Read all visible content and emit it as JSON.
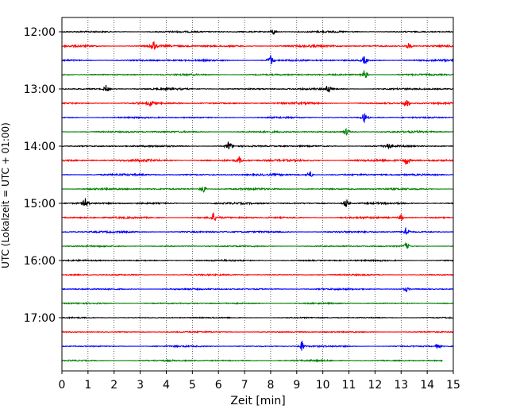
{
  "chart_data": {
    "type": "line",
    "subtype": "helicorder",
    "xlabel": "Zeit  [min]",
    "ylabel": "UTC (Lokalzeit = UTC + 01:00)",
    "xlim": [
      0,
      15
    ],
    "x_ticks": [
      "0",
      "1",
      "2",
      "3",
      "4",
      "5",
      "6",
      "7",
      "8",
      "9",
      "10",
      "11",
      "12",
      "13",
      "14",
      "15"
    ],
    "y_ticks": [
      "12:00",
      "13:00",
      "14:00",
      "15:00",
      "16:00",
      "17:00"
    ],
    "grid": "vertical dotted",
    "colors_cycle": [
      "#000000",
      "#ff0000",
      "#0000ff",
      "#008000"
    ],
    "rows": [
      {
        "start": "12:00",
        "color": "#000000",
        "amplitude": 0.55,
        "end_min": 15,
        "events": [
          {
            "t": 8.1,
            "amp": 2
          }
        ]
      },
      {
        "start": "12:15",
        "color": "#ff0000",
        "amplitude": 0.7,
        "end_min": 15,
        "events": [
          {
            "t": 3.5,
            "amp": 3.5
          },
          {
            "t": 13.3,
            "amp": 2
          }
        ]
      },
      {
        "start": "12:30",
        "color": "#0000ff",
        "amplitude": 0.6,
        "end_min": 15,
        "events": [
          {
            "t": 8.0,
            "amp": 3.5
          },
          {
            "t": 11.6,
            "amp": 2.5
          }
        ]
      },
      {
        "start": "12:45",
        "color": "#008000",
        "amplitude": 0.55,
        "end_min": 15,
        "events": [
          {
            "t": 11.6,
            "amp": 3.5
          }
        ]
      },
      {
        "start": "13:00",
        "color": "#000000",
        "amplitude": 0.6,
        "end_min": 15,
        "events": [
          {
            "t": 1.7,
            "amp": 2.5
          },
          {
            "t": 10.2,
            "amp": 3
          }
        ]
      },
      {
        "start": "13:15",
        "color": "#ff0000",
        "amplitude": 0.6,
        "end_min": 15,
        "events": [
          {
            "t": 3.4,
            "amp": 2
          },
          {
            "t": 13.2,
            "amp": 3
          }
        ]
      },
      {
        "start": "13:30",
        "color": "#0000ff",
        "amplitude": 0.5,
        "end_min": 15,
        "events": [
          {
            "t": 11.6,
            "amp": 3.5
          }
        ]
      },
      {
        "start": "13:45",
        "color": "#008000",
        "amplitude": 0.55,
        "end_min": 15,
        "events": [
          {
            "t": 10.9,
            "amp": 2.5
          }
        ]
      },
      {
        "start": "14:00",
        "color": "#000000",
        "amplitude": 0.55,
        "end_min": 15,
        "events": [
          {
            "t": 6.4,
            "amp": 3.5
          },
          {
            "t": 12.5,
            "amp": 2
          }
        ]
      },
      {
        "start": "14:15",
        "color": "#ff0000",
        "amplitude": 0.75,
        "end_min": 15,
        "events": [
          {
            "t": 6.8,
            "amp": 2
          },
          {
            "t": 13.2,
            "amp": 3
          }
        ]
      },
      {
        "start": "14:30",
        "color": "#0000ff",
        "amplitude": 0.6,
        "end_min": 15,
        "events": [
          {
            "t": 9.5,
            "amp": 3
          }
        ]
      },
      {
        "start": "14:45",
        "color": "#008000",
        "amplitude": 0.6,
        "end_min": 15,
        "events": [
          {
            "t": 5.4,
            "amp": 3
          }
        ]
      },
      {
        "start": "15:00",
        "color": "#000000",
        "amplitude": 0.6,
        "end_min": 15,
        "events": [
          {
            "t": 0.9,
            "amp": 3
          },
          {
            "t": 10.9,
            "amp": 3
          }
        ]
      },
      {
        "start": "15:15",
        "color": "#ff0000",
        "amplitude": 0.6,
        "end_min": 15,
        "events": [
          {
            "t": 5.8,
            "amp": 3
          },
          {
            "t": 13.0,
            "amp": 2
          }
        ]
      },
      {
        "start": "15:30",
        "color": "#0000ff",
        "amplitude": 0.55,
        "end_min": 15,
        "events": [
          {
            "t": 13.2,
            "amp": 3.5
          }
        ]
      },
      {
        "start": "15:45",
        "color": "#008000",
        "amplitude": 0.45,
        "end_min": 15,
        "events": [
          {
            "t": 13.2,
            "amp": 2.5
          }
        ]
      },
      {
        "start": "16:00",
        "color": "#000000",
        "amplitude": 0.5,
        "end_min": 15,
        "events": []
      },
      {
        "start": "16:15",
        "color": "#ff0000",
        "amplitude": 0.45,
        "end_min": 15,
        "events": []
      },
      {
        "start": "16:30",
        "color": "#0000ff",
        "amplitude": 0.5,
        "end_min": 15,
        "events": [
          {
            "t": 13.2,
            "amp": 1.5
          }
        ]
      },
      {
        "start": "16:45",
        "color": "#008000",
        "amplitude": 0.45,
        "end_min": 15,
        "events": []
      },
      {
        "start": "17:00",
        "color": "#000000",
        "amplitude": 0.4,
        "end_min": 15,
        "events": []
      },
      {
        "start": "17:15",
        "color": "#ff0000",
        "amplitude": 0.4,
        "end_min": 15,
        "events": []
      },
      {
        "start": "17:30",
        "color": "#0000ff",
        "amplitude": 0.5,
        "end_min": 15,
        "events": [
          {
            "t": 9.2,
            "amp": 3.5
          },
          {
            "t": 14.4,
            "amp": 1.5
          }
        ]
      },
      {
        "start": "17:45",
        "color": "#008000",
        "amplitude": 0.5,
        "end_min": 14.6,
        "events": []
      }
    ]
  }
}
